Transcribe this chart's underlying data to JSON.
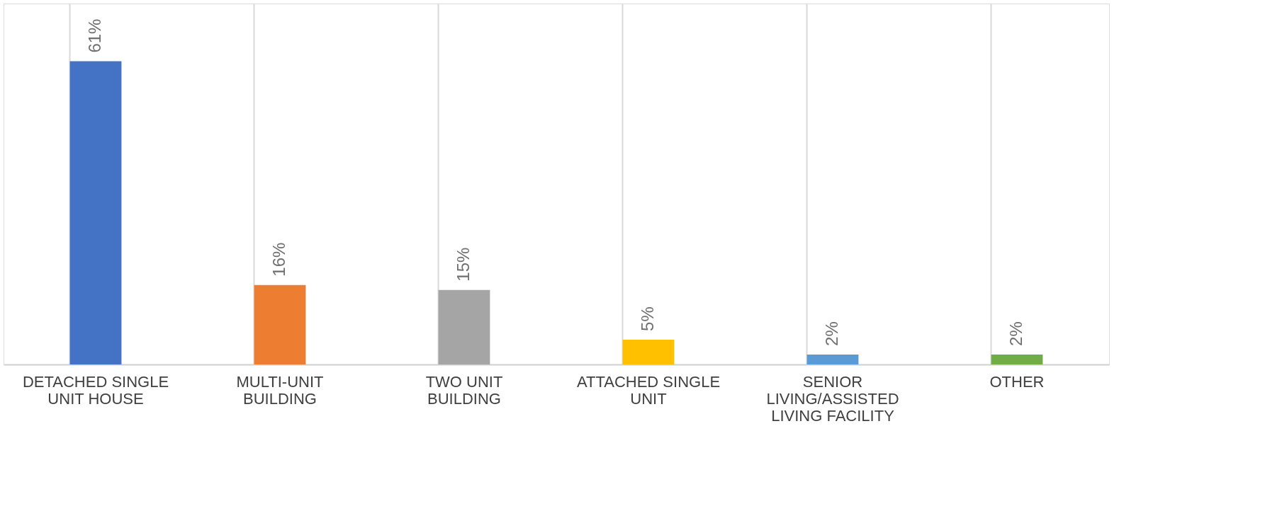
{
  "chart_data": {
    "type": "bar",
    "categories": [
      "DETACHED SINGLE UNIT HOUSE",
      "MULTI-UNIT BUILDING",
      "TWO UNIT BUILDING",
      "ATTACHED SINGLE UNIT",
      "SENIOR LIVING/ASSISTED LIVING FACILITY",
      "OTHER"
    ],
    "values": [
      61,
      16,
      15,
      5,
      2,
      2
    ],
    "colors": [
      "#4472c4",
      "#ed7d31",
      "#a5a5a5",
      "#ffc000",
      "#5b9bd5",
      "#70ad47"
    ],
    "value_labels": [
      "61%",
      "16%",
      "15%",
      "5%",
      "2%",
      "2%"
    ],
    "grid": "x",
    "tick_labels": "x"
  }
}
